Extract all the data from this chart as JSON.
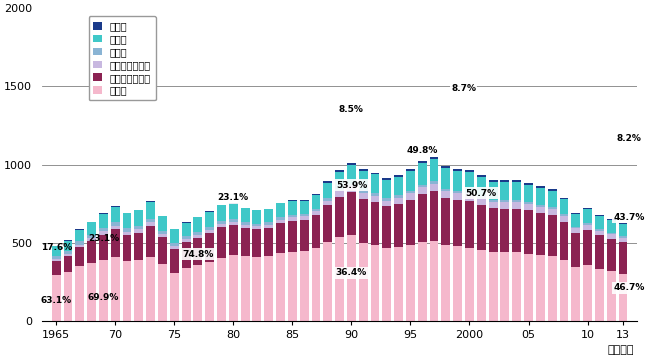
{
  "years": [
    1965,
    1966,
    1967,
    1968,
    1969,
    1970,
    1971,
    1972,
    1973,
    1974,
    1975,
    1976,
    1977,
    1978,
    1979,
    1980,
    1981,
    1982,
    1983,
    1984,
    1985,
    1986,
    1987,
    1988,
    1989,
    1990,
    1991,
    1992,
    1993,
    1994,
    1995,
    1996,
    1997,
    1998,
    1999,
    2000,
    2001,
    2002,
    2003,
    2004,
    2005,
    2006,
    2007,
    2008,
    2009,
    2010,
    2011,
    2012,
    2013
  ],
  "aviation": [
    1,
    1,
    2,
    2,
    3,
    3,
    3,
    3,
    4,
    3,
    3,
    3,
    3,
    4,
    4,
    4,
    4,
    4,
    4,
    4,
    5,
    5,
    6,
    7,
    8,
    10,
    11,
    11,
    11,
    11,
    12,
    13,
    14,
    13,
    13,
    13,
    12,
    12,
    12,
    12,
    11,
    11,
    11,
    10,
    9,
    9,
    9,
    9,
    8
  ],
  "shipping": [
    65,
    68,
    75,
    80,
    90,
    100,
    95,
    100,
    110,
    90,
    85,
    88,
    92,
    96,
    100,
    95,
    88,
    85,
    85,
    88,
    88,
    85,
    88,
    100,
    110,
    120,
    125,
    120,
    115,
    118,
    128,
    138,
    140,
    132,
    128,
    130,
    122,
    118,
    118,
    118,
    114,
    110,
    105,
    97,
    82,
    87,
    83,
    80,
    78
  ],
  "railway": [
    18,
    19,
    20,
    21,
    22,
    23,
    22,
    21,
    22,
    20,
    18,
    18,
    18,
    18,
    18,
    18,
    17,
    17,
    16,
    16,
    16,
    15,
    15,
    15,
    16,
    16,
    16,
    16,
    15,
    15,
    15,
    15,
    15,
    14,
    14,
    14,
    14,
    13,
    13,
    13,
    12,
    12,
    12,
    11,
    10,
    10,
    10,
    10,
    9
  ],
  "private_truck": [
    12,
    13,
    15,
    17,
    20,
    22,
    21,
    22,
    25,
    22,
    19,
    20,
    22,
    23,
    24,
    22,
    21,
    20,
    21,
    22,
    24,
    24,
    26,
    30,
    34,
    38,
    40,
    39,
    38,
    40,
    42,
    44,
    46,
    43,
    42,
    43,
    41,
    40,
    40,
    40,
    39,
    38,
    38,
    35,
    31,
    32,
    31,
    30,
    29
  ],
  "commercial_truck": [
    90,
    100,
    120,
    140,
    160,
    175,
    165,
    175,
    195,
    170,
    155,
    165,
    172,
    182,
    195,
    190,
    182,
    178,
    180,
    193,
    197,
    197,
    208,
    232,
    257,
    272,
    280,
    276,
    266,
    277,
    291,
    310,
    320,
    300,
    296,
    300,
    284,
    276,
    280,
    280,
    276,
    268,
    265,
    247,
    217,
    227,
    212,
    207,
    200
  ],
  "automobile": [
    298,
    316,
    356,
    375,
    395,
    412,
    388,
    392,
    412,
    368,
    310,
    340,
    360,
    380,
    405,
    425,
    415,
    410,
    415,
    435,
    445,
    450,
    470,
    510,
    540,
    553,
    500,
    488,
    468,
    473,
    487,
    505,
    513,
    490,
    480,
    468,
    459,
    446,
    441,
    441,
    433,
    424,
    415,
    390,
    346,
    359,
    337,
    320,
    306
  ],
  "colors": {
    "aviation": "#1a3a8a",
    "shipping": "#3fc8c8",
    "railway": "#8ab4d4",
    "private_truck": "#c8b8e0",
    "commercial_truck": "#8b2252",
    "automobile": "#f5b8cc"
  },
  "labels": {
    "aviation": "航　空",
    "shipping": "海　運",
    "railway": "鉄　道",
    "private_truck": "自家用トラック",
    "commercial_truck": "営業用トラック",
    "automobile": "自動車"
  },
  "annotations_left": [
    {
      "year": 1965,
      "text": "63.1%",
      "y": 135,
      "ha": "center"
    },
    {
      "year": 1969,
      "text": "69.9%",
      "y": 155,
      "ha": "center"
    },
    {
      "year": 1965,
      "text": "17.6%",
      "y": 470,
      "ha": "center"
    },
    {
      "year": 1969,
      "text": "23.1%",
      "y": 530,
      "ha": "center"
    }
  ],
  "annotations_box": [
    {
      "year": 1977,
      "text": "74.8%",
      "y": 430,
      "ha": "center"
    },
    {
      "year": 1980,
      "text": "23.1%",
      "y": 790,
      "ha": "center"
    },
    {
      "year": 1990,
      "text": "8.5%",
      "y": 1350,
      "ha": "center"
    },
    {
      "year": 1990,
      "text": "53.9%",
      "y": 870,
      "ha": "center"
    },
    {
      "year": 1990,
      "text": "36.4%",
      "y": 310,
      "ha": "center"
    },
    {
      "year": 1996,
      "text": "49.8%",
      "y": 1090,
      "ha": "center"
    },
    {
      "year": 2000,
      "text": "8.7%",
      "y": 1490,
      "ha": "center"
    },
    {
      "year": 2001,
      "text": "50.7%",
      "y": 820,
      "ha": "center"
    },
    {
      "year": 2013,
      "text": "8.2%",
      "y": 1165,
      "ha": "center"
    },
    {
      "year": 2013,
      "text": "43.7%",
      "y": 665,
      "ha": "center"
    },
    {
      "year": 2013,
      "text": "46.7%",
      "y": 215,
      "ha": "center"
    }
  ],
  "ylim": [
    0,
    2000
  ],
  "yticks": [
    0,
    500,
    1000,
    1500,
    2000
  ],
  "xlabel": "（年度）",
  "xtick_positions": [
    1965,
    1970,
    1975,
    1980,
    1985,
    1990,
    1995,
    2000,
    2005,
    2010,
    2013
  ],
  "xtick_labels": [
    "1965",
    "70",
    "75",
    "80",
    "85",
    "90",
    "95",
    "2000",
    "05",
    "10",
    "13"
  ],
  "xlim": [
    1963.8,
    2014.2
  ],
  "bar_width": 0.75
}
